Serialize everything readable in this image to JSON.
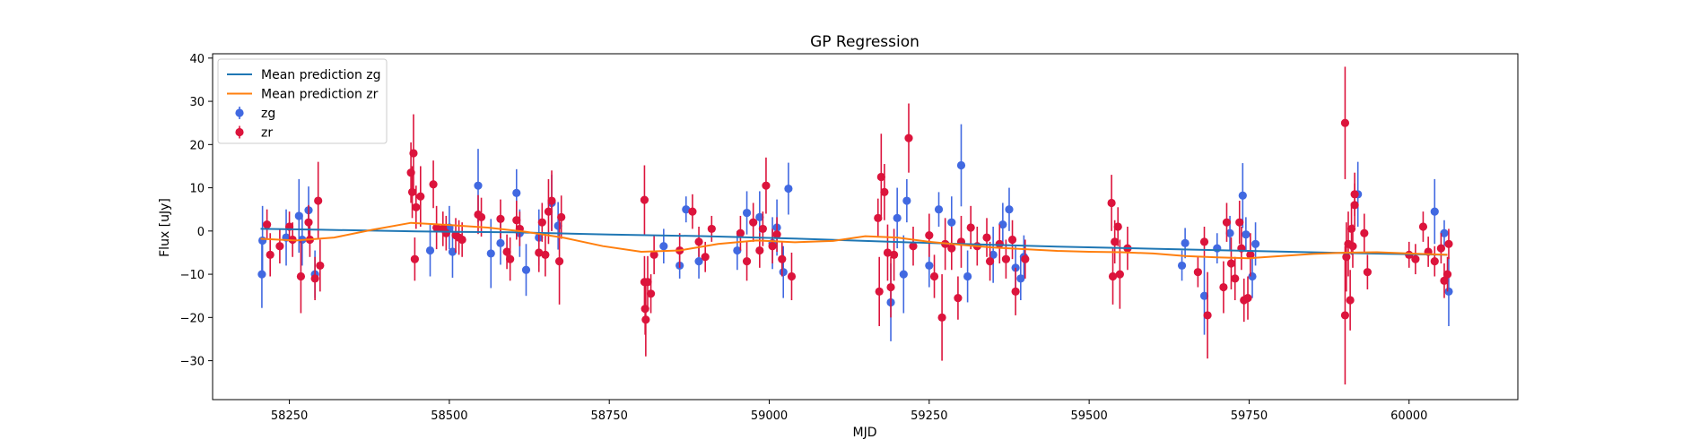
{
  "chart_data": {
    "type": "scatter",
    "title": "GP Regression",
    "xlabel": "MJD",
    "ylabel": "Flux [uJy]",
    "xlim": [
      58130,
      60170
    ],
    "ylim": [
      -39,
      41
    ],
    "xticks": [
      58250,
      58500,
      58750,
      59000,
      59250,
      59500,
      59750,
      60000
    ],
    "yticks": [
      -30,
      -20,
      -10,
      0,
      10,
      20,
      30,
      40
    ],
    "legend_position": "upper-left",
    "colors": {
      "zg_line": "#1f77b4",
      "zr_line": "#ff7f0e",
      "zg_points": "#4169e1",
      "zr_points": "#dc143c"
    },
    "lines": [
      {
        "name": "Mean prediction zg",
        "color": "#1f77b4",
        "x": [
          58205,
          58300,
          58450,
          58600,
          58750,
          58900,
          59050,
          59150,
          59300,
          59450,
          59600,
          59750,
          59900,
          60060
        ],
        "y": [
          0.5,
          0.3,
          -0.1,
          -0.3,
          -0.8,
          -1.2,
          -1.8,
          -2.3,
          -3.0,
          -3.6,
          -4.1,
          -4.6,
          -5.1,
          -5.5
        ]
      },
      {
        "name": "Mean prediction zr",
        "color": "#ff7f0e",
        "x": [
          58205,
          58260,
          58320,
          58380,
          58440,
          58500,
          58560,
          58620,
          58680,
          58740,
          58800,
          58860,
          58920,
          58980,
          59040,
          59100,
          59150,
          59200,
          59250,
          59300,
          59350,
          59400,
          59450,
          59500,
          59550,
          59600,
          59650,
          59700,
          59750,
          59800,
          59850,
          59900,
          59950,
          60000,
          60060
        ],
        "y": [
          -1.8,
          -2.2,
          -1.5,
          0.3,
          1.9,
          1.4,
          0.8,
          -0.2,
          -1.6,
          -3.5,
          -4.8,
          -4.5,
          -3.0,
          -2.2,
          -2.6,
          -2.3,
          -1.2,
          -1.5,
          -2.5,
          -3.2,
          -3.8,
          -4.2,
          -4.6,
          -4.8,
          -4.9,
          -5.2,
          -5.8,
          -6.1,
          -6.3,
          -5.8,
          -5.3,
          -5.0,
          -4.9,
          -5.2,
          -5.5
        ]
      }
    ],
    "series": [
      {
        "name": "zg",
        "color": "#4169e1",
        "points": [
          [
            58207,
            -10,
            7.8
          ],
          [
            58208,
            -2.2,
            8.0
          ],
          [
            58245,
            -1.5,
            6.5
          ],
          [
            58265,
            3.5,
            8.5
          ],
          [
            58270,
            -2.0,
            6.0
          ],
          [
            58280,
            4.8,
            5.5
          ],
          [
            58290,
            -10.0,
            5.5
          ],
          [
            58470,
            -4.5,
            6.0
          ],
          [
            58500,
            0.8,
            5.0
          ],
          [
            58505,
            -4.8,
            6.0
          ],
          [
            58545,
            10.5,
            8.5
          ],
          [
            58565,
            -5.2,
            8.0
          ],
          [
            58580,
            -2.8,
            5.0
          ],
          [
            58605,
            8.8,
            5.5
          ],
          [
            58610,
            -0.5,
            5.5
          ],
          [
            58620,
            -9.0,
            6.0
          ],
          [
            58640,
            -1.5,
            6.5
          ],
          [
            58660,
            6.5,
            6.5
          ],
          [
            58670,
            1.2,
            5.5
          ],
          [
            58835,
            -3.5,
            4.0
          ],
          [
            58860,
            -8.0,
            3.0
          ],
          [
            58870,
            5.0,
            3.0
          ],
          [
            58890,
            -7.0,
            4.0
          ],
          [
            58950,
            -4.5,
            4.5
          ],
          [
            58965,
            4.2,
            5.0
          ],
          [
            58985,
            3.2,
            6.0
          ],
          [
            59005,
            -2.8,
            6.0
          ],
          [
            59012,
            0.8,
            6.5
          ],
          [
            59022,
            -9.5,
            6.0
          ],
          [
            59030,
            9.8,
            6.0
          ],
          [
            59190,
            -16.5,
            9.0
          ],
          [
            59200,
            3.0,
            7.0
          ],
          [
            59210,
            -10.0,
            9.0
          ],
          [
            59215,
            7.0,
            5.0
          ],
          [
            59250,
            -8.0,
            5.0
          ],
          [
            59265,
            5.0,
            4.0
          ],
          [
            59285,
            2.0,
            6.0
          ],
          [
            59300,
            15.2,
            9.5
          ],
          [
            59310,
            -10.5,
            6.0
          ],
          [
            59350,
            -5.5,
            6.5
          ],
          [
            59365,
            1.5,
            5.0
          ],
          [
            59375,
            5.0,
            5.0
          ],
          [
            59385,
            -8.5,
            5.0
          ],
          [
            59393,
            -11.0,
            5.0
          ],
          [
            59398,
            -6.0,
            5.0
          ],
          [
            59645,
            -8.0,
            3.5
          ],
          [
            59650,
            -2.8,
            3.5
          ],
          [
            59680,
            -15.0,
            9.0
          ],
          [
            59700,
            -4.0,
            3.5
          ],
          [
            59720,
            -0.5,
            4.0
          ],
          [
            59740,
            8.2,
            7.5
          ],
          [
            59745,
            -0.8,
            4.0
          ],
          [
            59755,
            -10.5,
            5.0
          ],
          [
            59760,
            -3.0,
            5.0
          ],
          [
            59920,
            8.5,
            7.5
          ],
          [
            60040,
            4.5,
            7.5
          ],
          [
            60055,
            -0.5,
            3.0
          ],
          [
            60062,
            -14.0,
            8.0
          ]
        ]
      },
      {
        "name": "zr",
        "color": "#dc143c",
        "points": [
          [
            58215,
            1.5,
            3.5
          ],
          [
            58220,
            -5.5,
            5.0
          ],
          [
            58235,
            -3.5,
            4.0
          ],
          [
            58250,
            1.0,
            3.5
          ],
          [
            58255,
            -2.0,
            4.0
          ],
          [
            58268,
            -10.5,
            8.5
          ],
          [
            58280,
            2.0,
            4.0
          ],
          [
            58282,
            -2.0,
            4.0
          ],
          [
            58290,
            -11.0,
            5.0
          ],
          [
            58295,
            7.0,
            9.0
          ],
          [
            58298,
            -8.0,
            6.0
          ],
          [
            58440,
            13.5,
            7.0
          ],
          [
            58442,
            9.0,
            6.0
          ],
          [
            58444,
            18.0,
            9.0
          ],
          [
            58446,
            -6.5,
            5.0
          ],
          [
            58448,
            5.5,
            5.0
          ],
          [
            58455,
            8.0,
            7.0
          ],
          [
            58475,
            10.8,
            5.5
          ],
          [
            58480,
            0.8,
            5.0
          ],
          [
            58490,
            0.5,
            4.0
          ],
          [
            58495,
            -0.5,
            4.0
          ],
          [
            58510,
            -1.0,
            4.0
          ],
          [
            58515,
            -1.5,
            4.0
          ],
          [
            58520,
            -2.0,
            4.0
          ],
          [
            58545,
            3.8,
            4.5
          ],
          [
            58550,
            3.2,
            4.5
          ],
          [
            58580,
            2.8,
            4.5
          ],
          [
            58590,
            -4.8,
            4.0
          ],
          [
            58595,
            -6.5,
            5.0
          ],
          [
            58605,
            2.5,
            4.5
          ],
          [
            58610,
            0.5,
            4.0
          ],
          [
            58640,
            -5.0,
            4.5
          ],
          [
            58645,
            2.0,
            4.5
          ],
          [
            58650,
            -5.5,
            5.0
          ],
          [
            58655,
            4.5,
            7.5
          ],
          [
            58660,
            7.0,
            7.0
          ],
          [
            58672,
            -7.0,
            10.0
          ],
          [
            58675,
            3.2,
            5.0
          ],
          [
            58805,
            7.2,
            8.0
          ],
          [
            58805,
            -11.8,
            6.0
          ],
          [
            58806,
            -18.0,
            6.0
          ],
          [
            58807,
            -20.5,
            8.5
          ],
          [
            58810,
            -11.8,
            6.0
          ],
          [
            58815,
            -14.5,
            4.5
          ],
          [
            58820,
            -5.5,
            4.5
          ],
          [
            58860,
            -4.5,
            4.0
          ],
          [
            58880,
            4.5,
            4.0
          ],
          [
            58890,
            -2.5,
            3.5
          ],
          [
            58900,
            -6.0,
            3.5
          ],
          [
            58910,
            0.5,
            3.0
          ],
          [
            58955,
            -0.5,
            4.0
          ],
          [
            58965,
            -7.0,
            4.5
          ],
          [
            58975,
            2.0,
            4.5
          ],
          [
            58985,
            -4.5,
            4.0
          ],
          [
            58990,
            0.5,
            4.0
          ],
          [
            58995,
            10.5,
            6.5
          ],
          [
            59005,
            -3.5,
            4.0
          ],
          [
            59012,
            -0.8,
            4.0
          ],
          [
            59020,
            -6.5,
            4.0
          ],
          [
            59035,
            -10.5,
            5.5
          ],
          [
            59170,
            3.0,
            4.5
          ],
          [
            59172,
            -14.0,
            8.0
          ],
          [
            59175,
            12.5,
            10.0
          ],
          [
            59180,
            9.0,
            6.5
          ],
          [
            59185,
            -5.0,
            6.5
          ],
          [
            59190,
            -13.0,
            7.0
          ],
          [
            59195,
            -5.5,
            6.0
          ],
          [
            59218,
            21.5,
            8.0
          ],
          [
            59225,
            -3.5,
            4.5
          ],
          [
            59250,
            -1.0,
            5.0
          ],
          [
            59258,
            -10.5,
            5.0
          ],
          [
            59270,
            -20.0,
            10.0
          ],
          [
            59275,
            -3.0,
            6.0
          ],
          [
            59285,
            -4.0,
            5.0
          ],
          [
            59295,
            -15.5,
            5.0
          ],
          [
            59300,
            -2.5,
            6.0
          ],
          [
            59315,
            0.8,
            5.0
          ],
          [
            59325,
            -3.5,
            4.5
          ],
          [
            59340,
            -1.5,
            4.5
          ],
          [
            59345,
            -7.0,
            4.5
          ],
          [
            59360,
            -3.0,
            4.5
          ],
          [
            59370,
            -6.5,
            4.5
          ],
          [
            59380,
            -2.0,
            4.5
          ],
          [
            59385,
            -14.0,
            5.5
          ],
          [
            59400,
            -6.5,
            4.5
          ],
          [
            59535,
            6.5,
            6.5
          ],
          [
            59537,
            -10.5,
            6.5
          ],
          [
            59540,
            -2.5,
            5.0
          ],
          [
            59545,
            1.0,
            4.5
          ],
          [
            59548,
            -10.0,
            8.0
          ],
          [
            59560,
            -4.0,
            5.0
          ],
          [
            59670,
            -9.5,
            3.5
          ],
          [
            59680,
            -2.5,
            3.5
          ],
          [
            59685,
            -19.5,
            10.0
          ],
          [
            59710,
            -13.0,
            6.0
          ],
          [
            59715,
            2.0,
            4.5
          ],
          [
            59722,
            -7.5,
            6.0
          ],
          [
            59728,
            -11.0,
            5.0
          ],
          [
            59735,
            2.0,
            5.0
          ],
          [
            59738,
            -4.0,
            5.0
          ],
          [
            59742,
            -16.0,
            5.0
          ],
          [
            59748,
            -15.5,
            5.0
          ],
          [
            59752,
            -5.5,
            5.0
          ],
          [
            59900,
            25.0,
            13.0
          ],
          [
            59900,
            -19.5,
            16.0
          ],
          [
            59902,
            -6.0,
            8.0
          ],
          [
            59905,
            -3.0,
            7.5
          ],
          [
            59908,
            -16.0,
            7.0
          ],
          [
            59910,
            0.5,
            6.0
          ],
          [
            59912,
            -3.5,
            5.0
          ],
          [
            59915,
            8.5,
            5.0
          ],
          [
            59915,
            6.0,
            5.0
          ],
          [
            59930,
            -0.5,
            4.5
          ],
          [
            59935,
            -9.5,
            4.0
          ],
          [
            60000,
            -5.5,
            3.0
          ],
          [
            60010,
            -6.5,
            3.5
          ],
          [
            60022,
            1.0,
            3.5
          ],
          [
            60030,
            -4.8,
            3.5
          ],
          [
            60040,
            -7.0,
            3.5
          ],
          [
            60050,
            -4.0,
            3.5
          ],
          [
            60055,
            -11.5,
            4.0
          ],
          [
            60060,
            -10.0,
            4.0
          ],
          [
            60062,
            -3.0,
            3.5
          ]
        ]
      }
    ],
    "legend": [
      {
        "kind": "line",
        "label": "Mean prediction zg",
        "color": "#1f77b4"
      },
      {
        "kind": "line",
        "label": "Mean prediction zr",
        "color": "#ff7f0e"
      },
      {
        "kind": "errorbar",
        "label": "zg",
        "color": "#4169e1"
      },
      {
        "kind": "errorbar",
        "label": "zr",
        "color": "#dc143c"
      }
    ]
  }
}
